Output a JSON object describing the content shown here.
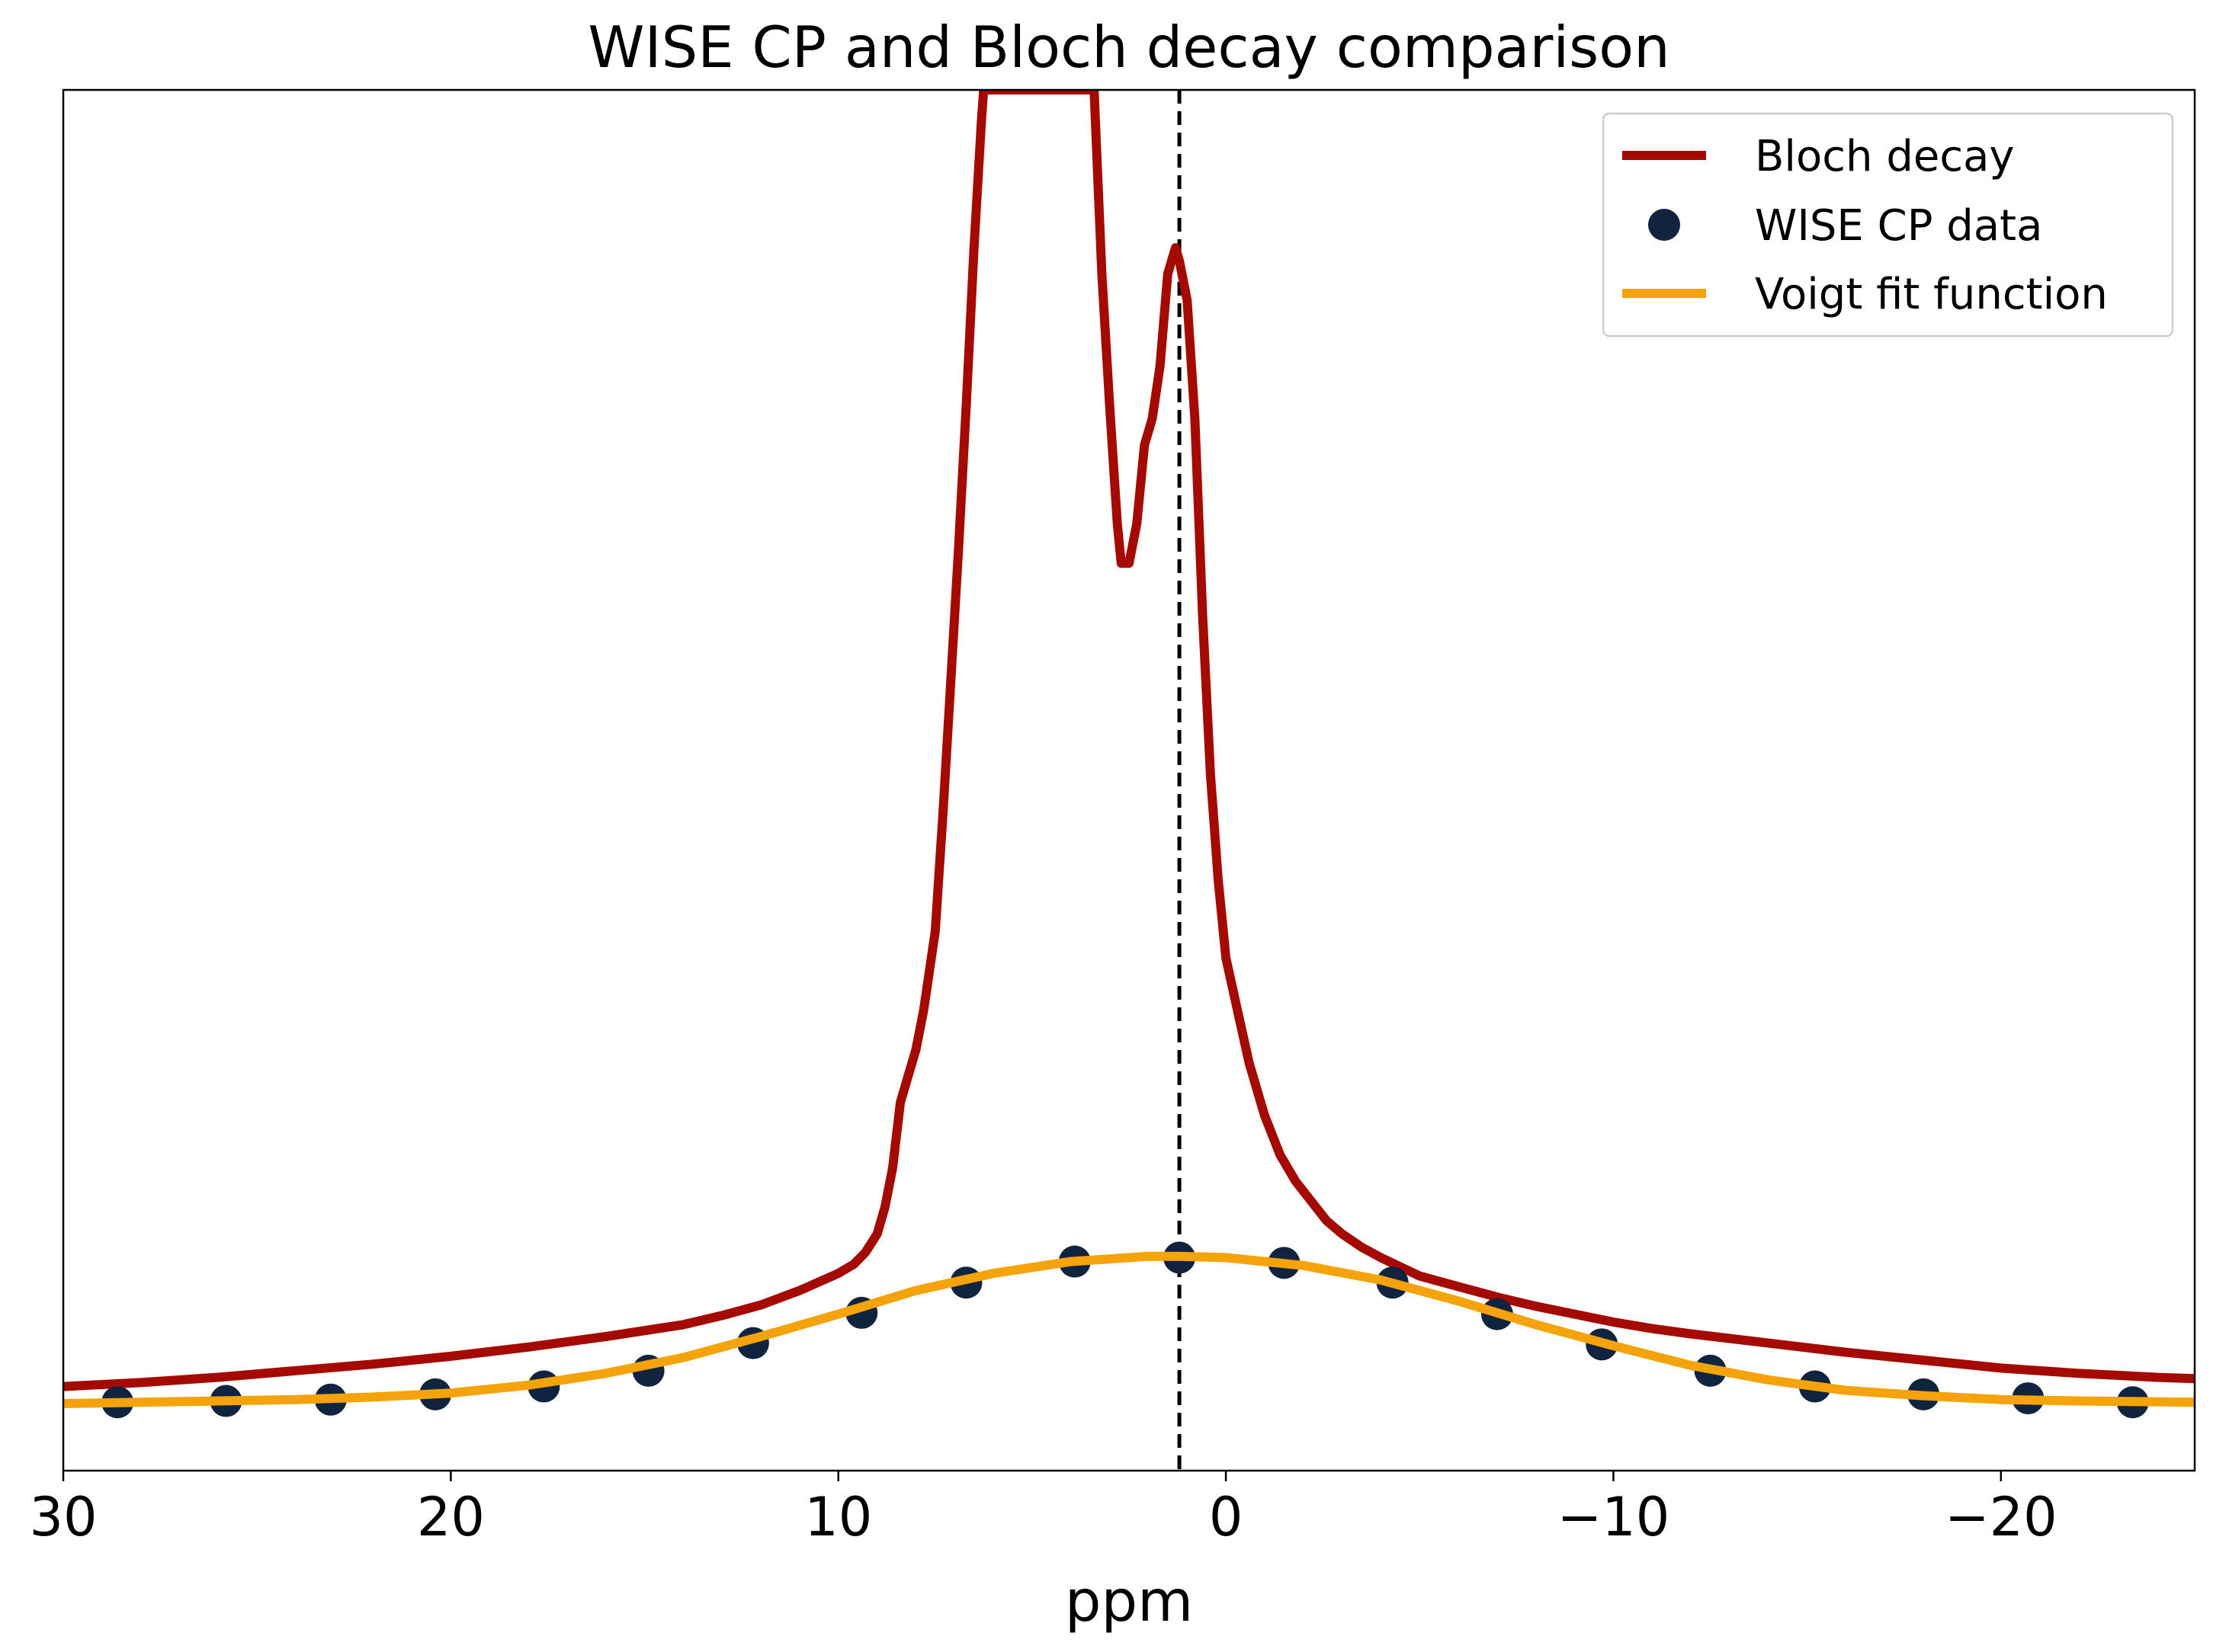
{
  "chart_data": {
    "type": "line",
    "title": "WISE CP and Bloch decay comparison",
    "xlabel": "ppm",
    "ylabel": "",
    "xlim": [
      30,
      -25
    ],
    "ylim": [
      -0.05,
      1.0
    ],
    "x_inverted": true,
    "y_ticks_shown": false,
    "grid": false,
    "legend_position": "upper right",
    "x_ticks": [
      {
        "value": 30,
        "label": "30"
      },
      {
        "value": 20,
        "label": "20"
      },
      {
        "value": 10,
        "label": "10"
      },
      {
        "value": 0,
        "label": "0"
      },
      {
        "value": -10,
        "label": "−10"
      },
      {
        "value": -20,
        "label": "−20"
      }
    ],
    "reference_line": {
      "x": 1.2,
      "style": "dashed",
      "color": "#000000"
    },
    "series": [
      {
        "name": "Bloch decay",
        "kind": "line",
        "color": "#a50a00",
        "x": [
          30,
          28,
          26,
          24,
          22,
          20,
          18,
          16,
          14,
          13,
          12,
          11,
          10,
          9.6,
          9.3,
          9.0,
          8.8,
          8.6,
          8.4,
          8.2,
          8.0,
          7.8,
          7.5,
          7.3,
          7.1,
          6.9,
          6.7,
          6.5,
          6.3,
          6.25,
          3.4,
          3.2,
          3.0,
          2.8,
          2.7,
          2.5,
          2.3,
          2.1,
          1.9,
          1.7,
          1.5,
          1.3,
          1.2,
          1.0,
          0.8,
          0.6,
          0.4,
          0.2,
          0.0,
          -0.3,
          -0.6,
          -1.0,
          -1.4,
          -1.8,
          -2.2,
          -2.6,
          -3.0,
          -3.5,
          -4.0,
          -4.5,
          -5,
          -6,
          -7,
          -8,
          -9,
          -10,
          -11,
          -12,
          -14,
          -16,
          -18,
          -20,
          -22,
          -24,
          -25
        ],
        "y": [
          0.014,
          0.017,
          0.021,
          0.026,
          0.031,
          0.037,
          0.044,
          0.052,
          0.061,
          0.068,
          0.076,
          0.087,
          0.1,
          0.107,
          0.116,
          0.13,
          0.15,
          0.18,
          0.23,
          0.25,
          0.27,
          0.3,
          0.36,
          0.45,
          0.55,
          0.65,
          0.76,
          0.88,
          0.98,
          1.0,
          1.0,
          0.86,
          0.76,
          0.67,
          0.64,
          0.64,
          0.67,
          0.73,
          0.75,
          0.79,
          0.86,
          0.88,
          0.87,
          0.84,
          0.75,
          0.6,
          0.48,
          0.4,
          0.34,
          0.3,
          0.26,
          0.22,
          0.19,
          0.17,
          0.155,
          0.14,
          0.13,
          0.12,
          0.112,
          0.105,
          0.098,
          0.09,
          0.082,
          0.075,
          0.069,
          0.063,
          0.058,
          0.054,
          0.047,
          0.04,
          0.034,
          0.028,
          0.024,
          0.021,
          0.02
        ]
      },
      {
        "name": "WISE CP data",
        "kind": "scatter",
        "color": "#10233f",
        "x": [
          28.6,
          25.8,
          23.1,
          20.4,
          17.6,
          14.9,
          12.2,
          9.4,
          6.7,
          3.9,
          1.2,
          -1.5,
          -4.3,
          -7.0,
          -9.7,
          -12.5,
          -15.2,
          -18.0,
          -20.7,
          -23.4
        ],
        "y": [
          0.002,
          0.003,
          0.004,
          0.008,
          0.014,
          0.026,
          0.047,
          0.07,
          0.093,
          0.109,
          0.112,
          0.108,
          0.093,
          0.069,
          0.046,
          0.026,
          0.014,
          0.008,
          0.005,
          0.002
        ]
      },
      {
        "name": "Voigt fit function",
        "kind": "line",
        "color": "#f5a30a",
        "x": [
          30,
          28,
          26,
          24,
          22,
          20,
          18,
          16,
          14,
          12,
          10,
          8,
          6,
          4,
          2,
          1.2,
          0,
          -2,
          -4,
          -6,
          -8,
          -10,
          -12,
          -14,
          -16,
          -18,
          -20,
          -22,
          -25
        ],
        "y": [
          0.001,
          0.002,
          0.003,
          0.004,
          0.006,
          0.009,
          0.015,
          0.024,
          0.036,
          0.052,
          0.069,
          0.087,
          0.1,
          0.109,
          0.113,
          0.113,
          0.112,
          0.106,
          0.095,
          0.079,
          0.061,
          0.045,
          0.03,
          0.019,
          0.011,
          0.007,
          0.004,
          0.003,
          0.002
        ]
      }
    ]
  }
}
